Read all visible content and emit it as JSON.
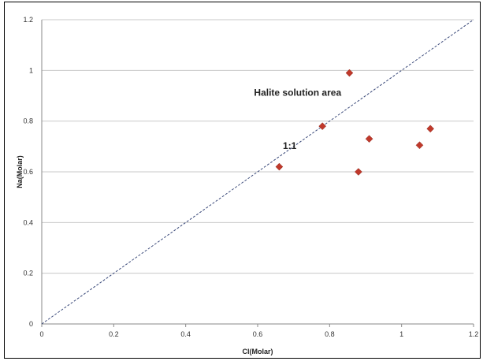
{
  "chart_data": {
    "type": "scatter",
    "title": "",
    "xlabel": "Cl(Molar)",
    "ylabel": "Na(Molar)",
    "xlim": [
      0,
      1.2
    ],
    "ylim": [
      0,
      1.2
    ],
    "xticks": [
      "0",
      "0.2",
      "0.4",
      "0.6",
      "0.8",
      "1",
      "1.2"
    ],
    "yticks": [
      "0",
      "0.2",
      "0.4",
      "0.6",
      "0.8",
      "1",
      "1.2"
    ],
    "grid": "horizontal",
    "legend": "none",
    "series": [
      {
        "marker": "diamond",
        "color": "#c0392b",
        "points": [
          {
            "x": 0.66,
            "y": 0.62
          },
          {
            "x": 0.78,
            "y": 0.78
          },
          {
            "x": 0.855,
            "y": 0.99
          },
          {
            "x": 0.88,
            "y": 0.6
          },
          {
            "x": 0.91,
            "y": 0.73
          },
          {
            "x": 1.05,
            "y": 0.705
          },
          {
            "x": 1.08,
            "y": 0.77
          }
        ]
      }
    ],
    "reference_line": {
      "label": "1:1",
      "from": [
        0,
        0
      ],
      "to": [
        1.2,
        1.2
      ],
      "style": "dashed",
      "color": "#3b4a7a"
    },
    "annotations": [
      {
        "text": "Halite solution area",
        "x": 0.59,
        "y": 0.9
      },
      {
        "text": "1:1",
        "x": 0.67,
        "y": 0.69
      }
    ]
  }
}
